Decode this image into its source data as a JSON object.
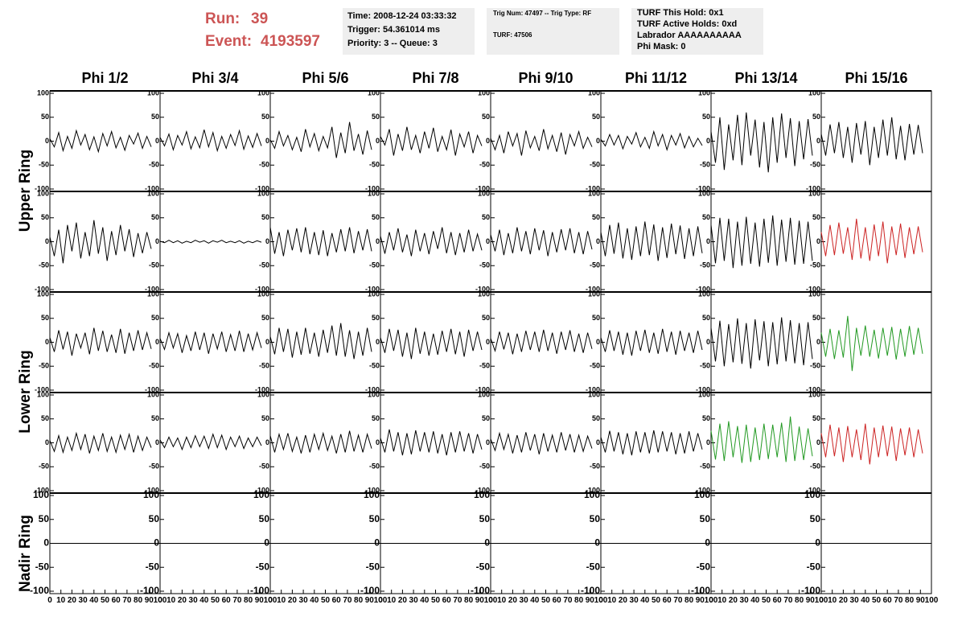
{
  "header": {
    "run_label": "Run:",
    "run": "39",
    "event_label": "Event:",
    "event": "4193597",
    "box1": [
      "Time: 2008-12-24 03:33:32",
      "Trigger: 54.361014 ms",
      "Priority: 3 -- Queue: 3"
    ],
    "box2": [
      "Trig Num: 47497 -- Trig Type: RF",
      "TURF: 47506"
    ],
    "box3": [
      "TURF This Hold: 0x1",
      "TURF Active Holds: 0xd",
      "Labrador AAAAAAAAAA",
      "Phi Mask: 0"
    ]
  },
  "display": {
    "columns": [
      "Phi 1/2",
      "Phi 3/4",
      "Phi 5/6",
      "Phi 7/8",
      "Phi 9/10",
      "Phi 11/12",
      "Phi 13/14",
      "Phi 15/16"
    ],
    "ring_labels": [
      "Upper Ring",
      "Lower Ring",
      "Nadir Ring"
    ],
    "ylim": [
      -100,
      100
    ],
    "yticks": [
      100,
      50,
      0,
      -50,
      -100
    ],
    "xlim": [
      0,
      100
    ],
    "xticks": [
      0,
      10,
      20,
      30,
      40,
      50,
      60,
      70,
      80,
      90,
      100
    ],
    "sample_x": [
      0,
      4,
      8,
      12,
      16,
      20,
      24,
      28,
      32,
      36,
      40,
      44,
      48,
      52,
      56,
      60,
      64,
      68,
      72,
      76,
      80,
      84,
      88,
      92
    ],
    "nadir_x": [
      0,
      100
    ],
    "waveforms": [
      [
        {
          "color": "#000000",
          "values": [
            5,
            -12,
            18,
            -20,
            10,
            -15,
            22,
            -8,
            14,
            -18,
            9,
            -22,
            16,
            -10,
            20,
            -14,
            8,
            -19,
            12,
            -6,
            17,
            -15,
            10,
            -12
          ]
        },
        {
          "color": "#000000",
          "values": [
            8,
            -10,
            15,
            -18,
            12,
            -8,
            20,
            -16,
            9,
            -14,
            24,
            -12,
            18,
            -20,
            10,
            -15,
            14,
            -9,
            22,
            -17,
            11,
            -13,
            16,
            -10
          ]
        },
        {
          "color": "#000000",
          "values": [
            3,
            -15,
            20,
            -10,
            12,
            -18,
            8,
            -22,
            25,
            -12,
            16,
            -20,
            10,
            -14,
            30,
            -35,
            18,
            -25,
            40,
            -20,
            15,
            -28,
            22,
            -18
          ]
        },
        {
          "color": "#000000",
          "values": [
            10,
            -8,
            25,
            -30,
            15,
            -20,
            30,
            -18,
            12,
            -25,
            20,
            -15,
            28,
            -22,
            10,
            -18,
            24,
            -30,
            15,
            -12,
            20,
            -25,
            12,
            -10
          ]
        },
        {
          "color": "#000000",
          "values": [
            6,
            -18,
            12,
            -25,
            20,
            -10,
            16,
            -30,
            22,
            -14,
            10,
            -20,
            25,
            -16,
            12,
            -22,
            18,
            -28,
            14,
            -10,
            20,
            -15,
            8,
            -12
          ]
        },
        {
          "color": "#000000",
          "values": [
            4,
            -10,
            14,
            -8,
            12,
            -16,
            10,
            -6,
            18,
            -12,
            8,
            -15,
            20,
            -10,
            14,
            -18,
            12,
            -8,
            16,
            -14,
            10,
            -12,
            6,
            -9
          ]
        },
        {
          "color": "#000000",
          "values": [
            20,
            -45,
            50,
            -60,
            35,
            -40,
            55,
            -50,
            60,
            -30,
            45,
            -55,
            40,
            -65,
            50,
            -45,
            58,
            -35,
            48,
            -52,
            42,
            -38,
            46,
            -30
          ]
        },
        {
          "color": "#000000",
          "values": [
            15,
            -30,
            35,
            -25,
            40,
            -35,
            30,
            -45,
            38,
            -28,
            42,
            -50,
            30,
            -35,
            45,
            -30,
            50,
            -38,
            32,
            -40,
            36,
            -28,
            34,
            -25
          ]
        }
      ],
      [
        {
          "color": "#000000",
          "values": [
            10,
            -30,
            25,
            -45,
            35,
            -20,
            40,
            -35,
            20,
            -30,
            45,
            -25,
            30,
            -40,
            22,
            -28,
            35,
            -20,
            26,
            -32,
            18,
            -24,
            20,
            -15
          ]
        },
        {
          "color": "#000000",
          "values": [
            1,
            -2,
            3,
            -2,
            2,
            -3,
            1,
            -2,
            3,
            -1,
            2,
            -3,
            2,
            -1,
            3,
            -2,
            1,
            -2,
            2,
            -3,
            1,
            -2,
            2,
            -1
          ]
        },
        {
          "color": "#000000",
          "values": [
            30,
            -25,
            20,
            -30,
            25,
            -18,
            28,
            -22,
            30,
            -26,
            20,
            -28,
            24,
            -30,
            18,
            -22,
            26,
            -20,
            30,
            -24,
            22,
            -18,
            26,
            -20
          ]
        },
        {
          "color": "#000000",
          "values": [
            12,
            -25,
            20,
            -18,
            28,
            -22,
            15,
            -30,
            25,
            -20,
            18,
            -26,
            22,
            -15,
            30,
            -24,
            20,
            -28,
            18,
            -22,
            25,
            -20,
            16,
            -18
          ]
        },
        {
          "color": "#000000",
          "values": [
            15,
            -20,
            25,
            -28,
            18,
            -24,
            30,
            -20,
            22,
            -26,
            28,
            -18,
            24,
            -30,
            20,
            -22,
            26,
            -18,
            28,
            -24,
            20,
            -26,
            22,
            -16
          ]
        },
        {
          "color": "#000000",
          "values": [
            20,
            -30,
            35,
            -25,
            40,
            -35,
            28,
            -38,
            32,
            -30,
            42,
            -28,
            36,
            -40,
            30,
            -34,
            38,
            -26,
            34,
            -36,
            28,
            -30,
            32,
            -24
          ]
        },
        {
          "color": "#000000",
          "values": [
            35,
            -45,
            50,
            -40,
            48,
            -55,
            42,
            -50,
            52,
            -46,
            40,
            -52,
            48,
            -44,
            55,
            -50,
            46,
            -42,
            50,
            -48,
            44,
            -46,
            42,
            -40
          ]
        },
        {
          "color": "#cc2222",
          "values": [
            20,
            -30,
            35,
            -28,
            40,
            -25,
            30,
            -38,
            48,
            -35,
            30,
            -40,
            36,
            -30,
            42,
            -45,
            32,
            -28,
            38,
            -34,
            30,
            -26,
            32,
            -22
          ]
        }
      ],
      [
        {
          "color": "#000000",
          "values": [
            10,
            -20,
            25,
            -15,
            22,
            -28,
            18,
            -12,
            20,
            -25,
            30,
            -18,
            24,
            -20,
            16,
            -22,
            28,
            -24,
            20,
            -18,
            25,
            -16,
            20,
            -14
          ]
        },
        {
          "color": "#000000",
          "values": [
            8,
            -15,
            20,
            -12,
            18,
            -22,
            14,
            -18,
            22,
            -16,
            20,
            -24,
            18,
            -14,
            22,
            -20,
            16,
            -18,
            24,
            -20,
            18,
            -16,
            20,
            -12
          ]
        },
        {
          "color": "#000000",
          "values": [
            12,
            -25,
            30,
            -20,
            28,
            -32,
            22,
            -26,
            30,
            -24,
            20,
            -30,
            26,
            -22,
            35,
            -28,
            40,
            -30,
            25,
            -35,
            22,
            -28,
            30,
            -20
          ]
        },
        {
          "color": "#000000",
          "values": [
            10,
            -22,
            28,
            -18,
            26,
            -30,
            20,
            -35,
            30,
            -24,
            22,
            -28,
            18,
            -26,
            24,
            -20,
            28,
            -25,
            22,
            -30,
            26,
            -18,
            22,
            -16
          ]
        },
        {
          "color": "#000000",
          "values": [
            8,
            -18,
            22,
            -15,
            20,
            -25,
            18,
            -20,
            24,
            -16,
            22,
            -20,
            26,
            -18,
            20,
            -24,
            22,
            -16,
            25,
            -20,
            18,
            -22,
            20,
            -14
          ]
        },
        {
          "color": "#000000",
          "values": [
            10,
            -20,
            25,
            -18,
            22,
            -26,
            20,
            -28,
            24,
            -18,
            26,
            -22,
            20,
            -24,
            28,
            -20,
            22,
            -26,
            24,
            -18,
            20,
            -22,
            24,
            -16
          ]
        },
        {
          "color": "#000000",
          "values": [
            30,
            -40,
            45,
            -50,
            38,
            -42,
            50,
            -45,
            40,
            -55,
            48,
            -38,
            44,
            -50,
            42,
            -46,
            52,
            -40,
            46,
            -44,
            40,
            -48,
            42,
            -35
          ]
        },
        {
          "color": "#229922",
          "values": [
            20,
            -30,
            28,
            -35,
            25,
            -32,
            55,
            -60,
            30,
            -28,
            35,
            -30,
            26,
            -34,
            30,
            -28,
            32,
            -36,
            28,
            -30,
            34,
            -26,
            30,
            -24
          ]
        }
      ],
      [
        {
          "color": "#000000",
          "values": [
            5,
            -18,
            15,
            -20,
            12,
            -16,
            20,
            -14,
            18,
            -22,
            14,
            -16,
            20,
            -18,
            12,
            -20,
            16,
            -14,
            18,
            -20,
            14,
            -16,
            12,
            -10
          ]
        },
        {
          "color": "#000000",
          "values": [
            6,
            -10,
            12,
            -8,
            10,
            -14,
            12,
            -10,
            15,
            -8,
            14,
            -12,
            18,
            -10,
            16,
            -14,
            12,
            -8,
            14,
            -12,
            10,
            -8,
            12,
            -6
          ]
        },
        {
          "color": "#000000",
          "values": [
            15,
            -20,
            18,
            -14,
            20,
            -18,
            12,
            -22,
            16,
            -20,
            18,
            -14,
            20,
            -16,
            14,
            -22,
            18,
            -20,
            25,
            -18,
            16,
            -20,
            18,
            -12
          ]
        },
        {
          "color": "#000000",
          "values": [
            10,
            -20,
            28,
            -18,
            22,
            -26,
            20,
            -24,
            26,
            -18,
            22,
            -20,
            24,
            -22,
            18,
            -26,
            22,
            -20,
            24,
            -18,
            20,
            -22,
            18,
            -14
          ]
        },
        {
          "color": "#000000",
          "values": [
            8,
            -16,
            20,
            -14,
            18,
            -22,
            16,
            -20,
            22,
            -16,
            18,
            -24,
            20,
            -18,
            16,
            -20,
            22,
            -16,
            18,
            -20,
            16,
            -18,
            14,
            -12
          ]
        },
        {
          "color": "#000000",
          "values": [
            12,
            -20,
            25,
            -18,
            22,
            -24,
            20,
            -26,
            24,
            -20,
            22,
            -22,
            26,
            -20,
            24,
            -18,
            22,
            -24,
            20,
            -22,
            24,
            -18,
            20,
            -14
          ]
        },
        {
          "color": "#229922",
          "values": [
            25,
            -35,
            40,
            -38,
            45,
            -30,
            35,
            -42,
            38,
            -40,
            32,
            -36,
            40,
            -34,
            38,
            -30,
            42,
            -40,
            55,
            -38,
            34,
            -36,
            30,
            -28
          ]
        },
        {
          "color": "#cc2222",
          "values": [
            20,
            -30,
            38,
            -28,
            32,
            -40,
            35,
            -30,
            28,
            -36,
            40,
            -45,
            32,
            -30,
            36,
            -28,
            34,
            -38,
            30,
            -26,
            32,
            -30,
            28,
            -22
          ]
        }
      ],
      [
        {
          "color": "#000000",
          "values": [
            0,
            0
          ]
        },
        {
          "color": "#000000",
          "values": [
            0,
            0
          ]
        },
        {
          "color": "#000000",
          "values": [
            0,
            0
          ]
        },
        {
          "color": "#000000",
          "values": [
            0,
            0
          ]
        },
        {
          "color": "#000000",
          "values": [
            0,
            0
          ]
        },
        {
          "color": "#000000",
          "values": [
            0,
            0
          ]
        },
        {
          "color": "#000000",
          "values": [
            0,
            0
          ]
        },
        {
          "color": "#000000",
          "values": [
            0,
            0
          ]
        }
      ]
    ]
  }
}
